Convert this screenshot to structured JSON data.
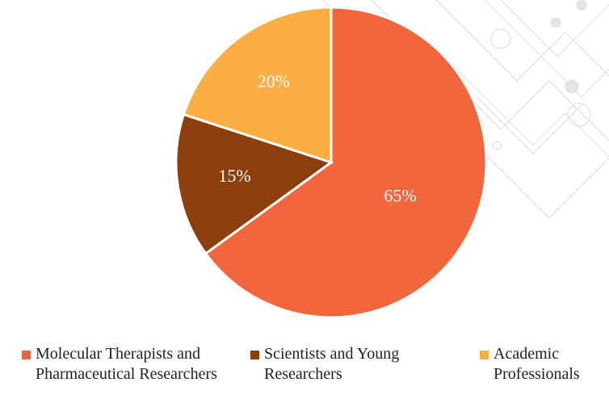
{
  "chart_data": {
    "type": "pie",
    "categories": [
      "Molecular Therapists and Pharmaceutical Researchers",
      "Scientists and Young Researchers",
      "Academic Professionals"
    ],
    "values": [
      65,
      15,
      20
    ],
    "value_labels": [
      "65%",
      "15%",
      "20%"
    ],
    "colors": [
      "#f2663d",
      "#8c3f0b",
      "#fbae42"
    ],
    "legend": "bottom"
  }
}
